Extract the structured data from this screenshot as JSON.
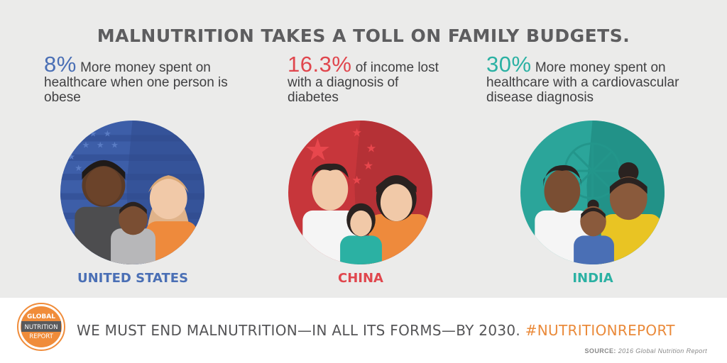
{
  "headline": "MALNUTRITION TAKES A TOLL ON FAMILY BUDGETS.",
  "stats": [
    {
      "country": "UNITED STATES",
      "percent": "8%",
      "text": "More money spent on healthcare when one person is obese",
      "color": "#4a6fb5"
    },
    {
      "country": "CHINA",
      "percent": "16.3%",
      "text": "of income lost with a diagnosis of diabetes",
      "color": "#e0464d"
    },
    {
      "country": "INDIA",
      "percent": "30%",
      "text": "More money spent on healthcare with a cardiovascular disease diagnosis",
      "color": "#2bb1a3"
    }
  ],
  "footer": {
    "logo": {
      "line1": "GLOBAL",
      "line2": "NUTRITION",
      "line3": "REPORT"
    },
    "tagline": "WE MUST END MALNUTRITION—IN ALL ITS FORMS—BY 2030.",
    "hashtag": "#NUTRITIONREPORT",
    "source_label": "SOURCE:",
    "source_text": "2016 Global Nutrition Report",
    "accent_color": "#ea8a3a"
  },
  "colors": {
    "background": "#ebebea",
    "us_blue": "#4a6fb5",
    "china_red": "#e0464d",
    "india_teal": "#2bb1a3",
    "text_gray": "#5d5d5f"
  }
}
